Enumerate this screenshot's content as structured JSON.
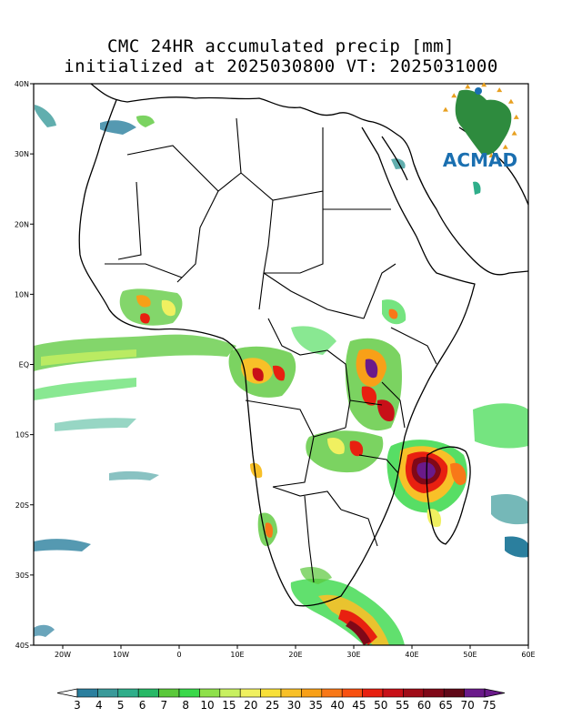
{
  "title": {
    "line1": "CMC 24HR accumulated precip [mm]",
    "line2": "initialized at 2025030800 VT: 2025031000"
  },
  "axes": {
    "lat_labels": [
      "40N",
      "30N",
      "20N",
      "10N",
      "EQ",
      "10S",
      "20S",
      "30S",
      "40S"
    ],
    "lon_labels": [
      "20W",
      "10W",
      "0",
      "10E",
      "20E",
      "30E",
      "40E",
      "50E",
      "60E"
    ]
  },
  "colorbar": {
    "labels": [
      "3",
      "4",
      "5",
      "6",
      "7",
      "8",
      "10",
      "15",
      "20",
      "25",
      "30",
      "35",
      "40",
      "45",
      "50",
      "55",
      "60",
      "65",
      "70",
      "75"
    ],
    "colors": [
      "#2b7f9e",
      "#3a9a9a",
      "#2fae8a",
      "#27b866",
      "#5ac83a",
      "#3ad84a",
      "#8ee04a",
      "#c8f060",
      "#f0f060",
      "#f8e038",
      "#f8c028",
      "#f8a018",
      "#f87818",
      "#f85010",
      "#e82010",
      "#c81018",
      "#a00c18",
      "#800818",
      "#600818",
      "#6a1a8a"
    ],
    "end_left_color": "#ffffff",
    "end_right_color": "#6a1a8a"
  },
  "logo": {
    "text": "ACMAD",
    "text_color": "#1a6fb0",
    "map_color": "#2e8b3e",
    "star_color": "#e8a020"
  },
  "map_colors": {
    "land_outline": "#000000",
    "frame": "#000000"
  }
}
